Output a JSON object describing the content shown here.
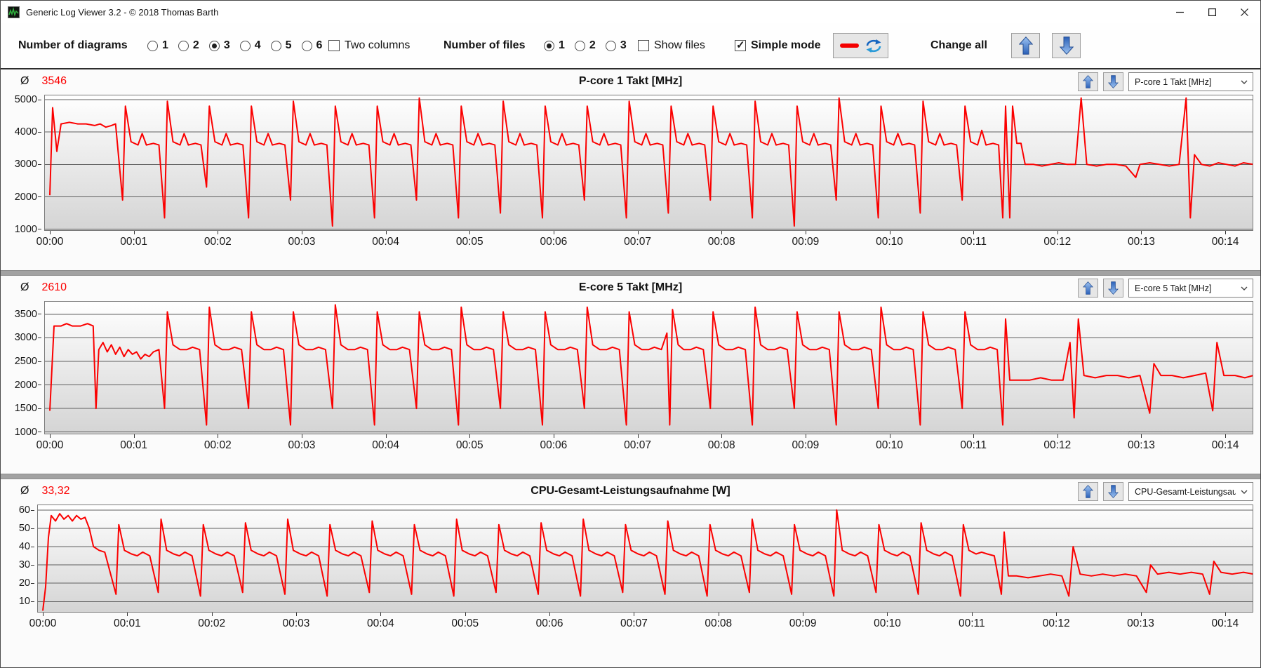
{
  "window": {
    "title": "Generic Log Viewer 3.2 - © 2018 Thomas Barth"
  },
  "toolbar": {
    "diagrams_label": "Number of diagrams",
    "diagram_options": [
      "1",
      "2",
      "3",
      "4",
      "5",
      "6"
    ],
    "diagram_selected": "3",
    "two_columns_label": "Two columns",
    "two_columns_checked": false,
    "files_label": "Number of files",
    "file_options": [
      "1",
      "2",
      "3"
    ],
    "file_selected": "1",
    "show_files_label": "Show files",
    "show_files_checked": false,
    "simple_mode_label": "Simple mode",
    "simple_mode_checked": true,
    "change_all_label": "Change all"
  },
  "colors": {
    "line_red": "#fb0000",
    "arrow_blue": "#3f76c8",
    "grid": "#5f5f5f"
  },
  "charts": [
    {
      "avg_symbol": "Ø",
      "avg_value": "3546",
      "title": "P-core 1 Takt [MHz]",
      "dropdown_value": "P-core 1 Takt [MHz]"
    },
    {
      "avg_symbol": "Ø",
      "avg_value": "2610",
      "title": "E-core 5 Takt [MHz]",
      "dropdown_value": "E-core 5 Takt [MHz]"
    },
    {
      "avg_symbol": "Ø",
      "avg_value": "33,32",
      "title": "CPU-Gesamt-Leistungsaufnahme [W]",
      "dropdown_value": "CPU-Gesamt-Leistungsau"
    }
  ],
  "chart_data": [
    {
      "type": "line",
      "title": "P-core 1 Takt [MHz]",
      "average": 3546,
      "color": "#fb0000",
      "grid": true,
      "bg_gradient": [
        "#ffffff",
        "#d4d4d4"
      ],
      "xmax": 860,
      "x_tick_seconds": [
        0,
        60,
        120,
        180,
        240,
        300,
        360,
        420,
        480,
        540,
        600,
        660,
        720,
        780,
        840
      ],
      "x_tick_labels": [
        "00:00",
        "00:01",
        "00:02",
        "00:03",
        "00:04",
        "00:05",
        "00:06",
        "00:07",
        "00:08",
        "00:09",
        "00:10",
        "00:11",
        "00:12",
        "00:13",
        "00:14"
      ],
      "ylim": [
        950,
        5150
      ],
      "yticks": [
        5000,
        4000,
        3000,
        2000,
        1000
      ],
      "points_flat": [
        0,
        2050,
        2,
        4750,
        5,
        3400,
        8,
        4250,
        14,
        4300,
        20,
        4250,
        26,
        4250,
        32,
        4200,
        36,
        4250,
        40,
        4150,
        44,
        4200,
        47,
        4250,
        52,
        1900,
        54,
        4800,
        58,
        3700,
        63,
        3600,
        66,
        3950,
        69,
        3600,
        74,
        3650,
        78,
        3600,
        82,
        1350,
        84,
        4950,
        88,
        3700,
        93,
        3600,
        96,
        3950,
        99,
        3600,
        104,
        3650,
        108,
        3600,
        112,
        2300,
        114,
        4800,
        118,
        3700,
        123,
        3600,
        126,
        3950,
        129,
        3600,
        134,
        3650,
        138,
        3600,
        142,
        1350,
        144,
        4800,
        148,
        3700,
        153,
        3600,
        156,
        3950,
        159,
        3600,
        164,
        3650,
        168,
        3600,
        172,
        1900,
        174,
        4950,
        178,
        3700,
        183,
        3600,
        186,
        3950,
        189,
        3600,
        194,
        3650,
        198,
        3600,
        202,
        1100,
        204,
        4800,
        208,
        3700,
        213,
        3600,
        216,
        3950,
        219,
        3600,
        224,
        3650,
        228,
        3600,
        232,
        1350,
        234,
        4800,
        238,
        3700,
        243,
        3600,
        246,
        3950,
        249,
        3600,
        254,
        3650,
        258,
        3600,
        262,
        1900,
        264,
        5050,
        268,
        3700,
        273,
        3600,
        276,
        3950,
        279,
        3600,
        284,
        3650,
        288,
        3600,
        292,
        1350,
        294,
        4800,
        298,
        3700,
        303,
        3600,
        306,
        3950,
        309,
        3600,
        314,
        3650,
        318,
        3600,
        322,
        1500,
        324,
        4950,
        328,
        3700,
        333,
        3600,
        336,
        3950,
        339,
        3600,
        344,
        3650,
        348,
        3600,
        352,
        1350,
        354,
        4800,
        358,
        3700,
        363,
        3600,
        366,
        3950,
        369,
        3600,
        374,
        3650,
        378,
        3600,
        382,
        1900,
        384,
        4800,
        388,
        3700,
        393,
        3600,
        396,
        3950,
        399,
        3600,
        404,
        3650,
        408,
        3600,
        412,
        1350,
        414,
        4950,
        418,
        3700,
        423,
        3600,
        426,
        3950,
        429,
        3600,
        434,
        3650,
        438,
        3600,
        442,
        1500,
        444,
        4800,
        448,
        3700,
        453,
        3600,
        456,
        3950,
        459,
        3600,
        464,
        3650,
        468,
        3600,
        472,
        1900,
        474,
        4800,
        478,
        3700,
        483,
        3600,
        486,
        3950,
        489,
        3600,
        494,
        3650,
        498,
        3600,
        502,
        1350,
        504,
        4950,
        508,
        3700,
        513,
        3600,
        516,
        3950,
        519,
        3600,
        524,
        3650,
        528,
        3600,
        532,
        1100,
        534,
        4800,
        538,
        3700,
        543,
        3600,
        546,
        3950,
        549,
        3600,
        554,
        3650,
        558,
        3600,
        562,
        1900,
        564,
        5050,
        568,
        3700,
        573,
        3600,
        576,
        3950,
        579,
        3600,
        584,
        3650,
        588,
        3600,
        592,
        1350,
        594,
        4800,
        598,
        3700,
        603,
        3600,
        606,
        3950,
        609,
        3600,
        614,
        3650,
        618,
        3600,
        622,
        1500,
        624,
        4950,
        628,
        3700,
        633,
        3600,
        636,
        3950,
        639,
        3600,
        644,
        3650,
        648,
        3600,
        652,
        1900,
        654,
        4800,
        658,
        3700,
        663,
        3600,
        666,
        4050,
        669,
        3600,
        674,
        3650,
        678,
        3600,
        681,
        1350,
        683,
        4800,
        686,
        1350,
        688,
        4800,
        691,
        3650,
        694,
        3650,
        697,
        3000,
        703,
        3000,
        709,
        2950,
        715,
        3000,
        721,
        3050,
        727,
        3000,
        733,
        3000,
        737,
        5050,
        741,
        3000,
        748,
        2950,
        755,
        3000,
        762,
        3000,
        769,
        2950,
        776,
        2600,
        779,
        3000,
        786,
        3050,
        793,
        3000,
        800,
        2950,
        807,
        3000,
        812,
        5050,
        815,
        1350,
        818,
        3300,
        823,
        3000,
        829,
        2950,
        835,
        3050,
        841,
        3000,
        847,
        2950,
        853,
        3050,
        860,
        3000
      ]
    },
    {
      "type": "line",
      "title": "E-core 5 Takt [MHz]",
      "average": 2610,
      "color": "#fb0000",
      "grid": true,
      "bg_gradient": [
        "#ffffff",
        "#d4d4d4"
      ],
      "xmax": 860,
      "x_tick_seconds": [
        0,
        60,
        120,
        180,
        240,
        300,
        360,
        420,
        480,
        540,
        600,
        660,
        720,
        780,
        840
      ],
      "x_tick_labels": [
        "00:00",
        "00:01",
        "00:02",
        "00:03",
        "00:04",
        "00:05",
        "00:06",
        "00:07",
        "00:08",
        "00:09",
        "00:10",
        "00:11",
        "00:12",
        "00:13",
        "00:14"
      ],
      "ylim": [
        950,
        3780
      ],
      "yticks": [
        3500,
        3000,
        2500,
        2000,
        1500,
        1000
      ],
      "points_flat": [
        0,
        1450,
        3,
        3250,
        8,
        3250,
        12,
        3300,
        16,
        3250,
        22,
        3250,
        27,
        3300,
        31,
        3250,
        33,
        1500,
        35,
        2750,
        38,
        2900,
        41,
        2700,
        44,
        2850,
        47,
        2650,
        50,
        2800,
        53,
        2600,
        56,
        2750,
        59,
        2650,
        62,
        2700,
        65,
        2550,
        68,
        2650,
        71,
        2600,
        74,
        2700,
        78,
        2750,
        82,
        1500,
        84,
        3550,
        88,
        2850,
        93,
        2750,
        98,
        2750,
        102,
        2800,
        107,
        2750,
        112,
        1150,
        114,
        3650,
        118,
        2850,
        123,
        2750,
        128,
        2750,
        132,
        2800,
        137,
        2750,
        142,
        1500,
        144,
        3550,
        148,
        2850,
        153,
        2750,
        158,
        2750,
        162,
        2800,
        167,
        2750,
        172,
        1150,
        174,
        3550,
        178,
        2850,
        183,
        2750,
        188,
        2750,
        192,
        2800,
        197,
        2750,
        202,
        1500,
        204,
        3700,
        208,
        2850,
        213,
        2750,
        218,
        2750,
        222,
        2800,
        227,
        2750,
        232,
        1150,
        234,
        3550,
        238,
        2850,
        243,
        2750,
        248,
        2750,
        252,
        2800,
        257,
        2750,
        262,
        1500,
        264,
        3550,
        268,
        2850,
        273,
        2750,
        278,
        2750,
        282,
        2800,
        287,
        2750,
        292,
        1150,
        294,
        3650,
        298,
        2850,
        303,
        2750,
        308,
        2750,
        312,
        2800,
        317,
        2750,
        322,
        1500,
        324,
        3550,
        328,
        2850,
        333,
        2750,
        338,
        2750,
        342,
        2800,
        347,
        2750,
        352,
        1150,
        354,
        3550,
        358,
        2850,
        363,
        2750,
        368,
        2750,
        372,
        2800,
        377,
        2750,
        382,
        1500,
        384,
        3650,
        388,
        2850,
        393,
        2750,
        398,
        2750,
        402,
        2800,
        407,
        2750,
        412,
        1150,
        414,
        3550,
        418,
        2850,
        423,
        2750,
        428,
        2750,
        432,
        2800,
        437,
        2750,
        441,
        3100,
        443,
        1150,
        445,
        3600,
        449,
        2850,
        453,
        2750,
        458,
        2750,
        462,
        2800,
        467,
        2750,
        472,
        1500,
        474,
        3550,
        478,
        2850,
        483,
        2750,
        488,
        2750,
        492,
        2800,
        497,
        2750,
        502,
        1150,
        504,
        3650,
        508,
        2850,
        513,
        2750,
        518,
        2750,
        522,
        2800,
        527,
        2750,
        532,
        1500,
        534,
        3550,
        538,
        2850,
        543,
        2750,
        548,
        2750,
        552,
        2800,
        557,
        2750,
        562,
        1150,
        564,
        3550,
        568,
        2850,
        573,
        2750,
        578,
        2750,
        582,
        2800,
        587,
        2750,
        592,
        1500,
        594,
        3650,
        598,
        2850,
        603,
        2750,
        608,
        2750,
        612,
        2800,
        617,
        2750,
        622,
        1150,
        624,
        3550,
        628,
        2850,
        633,
        2750,
        638,
        2750,
        642,
        2800,
        647,
        2750,
        652,
        1500,
        654,
        3550,
        658,
        2850,
        663,
        2750,
        668,
        2750,
        672,
        2800,
        677,
        2750,
        681,
        1150,
        683,
        3400,
        686,
        2100,
        692,
        2100,
        700,
        2100,
        708,
        2150,
        716,
        2100,
        724,
        2100,
        729,
        2900,
        732,
        1300,
        735,
        3400,
        739,
        2200,
        747,
        2150,
        755,
        2200,
        763,
        2200,
        771,
        2150,
        779,
        2200,
        786,
        1400,
        789,
        2450,
        794,
        2200,
        802,
        2200,
        810,
        2150,
        818,
        2200,
        826,
        2250,
        831,
        1450,
        834,
        2900,
        839,
        2200,
        847,
        2200,
        854,
        2150,
        860,
        2200
      ]
    },
    {
      "type": "line",
      "title": "CPU-Gesamt-Leistungsaufnahme [W]",
      "average": 33.32,
      "color": "#fb0000",
      "grid": true,
      "bg_gradient": [
        "#ffffff",
        "#d4d4d4"
      ],
      "xmax": 860,
      "x_tick_seconds": [
        0,
        60,
        120,
        180,
        240,
        300,
        360,
        420,
        480,
        540,
        600,
        660,
        720,
        780,
        840
      ],
      "x_tick_labels": [
        "00:00",
        "00:01",
        "00:02",
        "00:03",
        "00:04",
        "00:05",
        "00:06",
        "00:07",
        "00:08",
        "00:09",
        "00:10",
        "00:11",
        "00:12",
        "00:13",
        "00:14"
      ],
      "ylim": [
        4,
        63
      ],
      "yticks": [
        60,
        50,
        40,
        30,
        20,
        10
      ],
      "points_flat": [
        0,
        5,
        2,
        18,
        4,
        45,
        6,
        57,
        9,
        54,
        12,
        58,
        15,
        55,
        18,
        57,
        21,
        54,
        24,
        57,
        27,
        55,
        30,
        56,
        33,
        50,
        36,
        40,
        40,
        38,
        44,
        37,
        52,
        14,
        54,
        52,
        58,
        38,
        63,
        36,
        67,
        35,
        71,
        37,
        76,
        35,
        82,
        15,
        84,
        55,
        88,
        38,
        93,
        36,
        97,
        35,
        101,
        37,
        106,
        35,
        112,
        13,
        114,
        52,
        118,
        38,
        123,
        36,
        127,
        35,
        131,
        37,
        136,
        35,
        142,
        15,
        144,
        53,
        148,
        38,
        153,
        36,
        157,
        35,
        161,
        37,
        166,
        35,
        172,
        14,
        174,
        55,
        178,
        38,
        183,
        36,
        187,
        35,
        191,
        37,
        196,
        35,
        202,
        13,
        204,
        52,
        208,
        38,
        213,
        36,
        217,
        35,
        221,
        37,
        226,
        35,
        232,
        15,
        234,
        54,
        238,
        38,
        243,
        36,
        247,
        35,
        251,
        37,
        256,
        35,
        262,
        14,
        264,
        52,
        268,
        38,
        273,
        36,
        277,
        35,
        281,
        37,
        286,
        35,
        292,
        13,
        294,
        55,
        298,
        38,
        303,
        36,
        307,
        35,
        311,
        37,
        316,
        35,
        322,
        15,
        324,
        52,
        328,
        38,
        333,
        36,
        337,
        35,
        341,
        37,
        346,
        35,
        352,
        14,
        354,
        53,
        358,
        38,
        363,
        36,
        367,
        35,
        371,
        37,
        376,
        35,
        382,
        13,
        384,
        55,
        388,
        38,
        393,
        36,
        397,
        35,
        401,
        37,
        406,
        35,
        412,
        15,
        414,
        52,
        418,
        38,
        423,
        36,
        427,
        35,
        431,
        37,
        436,
        35,
        442,
        14,
        444,
        54,
        448,
        38,
        453,
        36,
        457,
        35,
        461,
        37,
        466,
        35,
        472,
        13,
        474,
        52,
        478,
        38,
        483,
        36,
        487,
        35,
        491,
        37,
        496,
        35,
        502,
        15,
        504,
        55,
        508,
        38,
        513,
        36,
        517,
        35,
        521,
        37,
        526,
        35,
        532,
        14,
        534,
        52,
        538,
        38,
        543,
        36,
        547,
        35,
        551,
        37,
        556,
        35,
        562,
        13,
        564,
        60,
        568,
        38,
        573,
        36,
        577,
        35,
        581,
        37,
        586,
        35,
        592,
        15,
        594,
        52,
        598,
        38,
        603,
        36,
        607,
        35,
        611,
        37,
        616,
        35,
        622,
        14,
        624,
        53,
        628,
        38,
        633,
        36,
        637,
        35,
        641,
        37,
        646,
        35,
        652,
        13,
        654,
        52,
        658,
        38,
        663,
        36,
        667,
        37,
        671,
        36,
        676,
        35,
        681,
        14,
        683,
        48,
        686,
        24,
        692,
        24,
        700,
        23,
        708,
        24,
        716,
        25,
        724,
        24,
        729,
        13,
        732,
        40,
        737,
        25,
        745,
        24,
        753,
        25,
        761,
        24,
        769,
        25,
        777,
        24,
        784,
        15,
        787,
        30,
        792,
        25,
        800,
        26,
        808,
        25,
        816,
        26,
        824,
        25,
        829,
        14,
        832,
        32,
        837,
        26,
        845,
        25,
        853,
        26,
        860,
        25
      ]
    }
  ]
}
